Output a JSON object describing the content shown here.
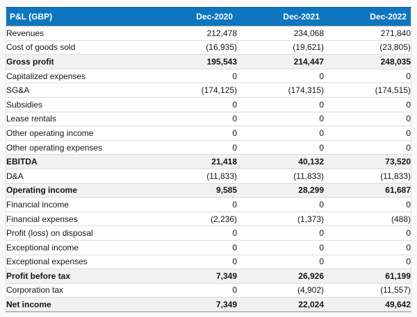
{
  "table": {
    "title": "P&L (GBP)",
    "columns": [
      "Dec-2020",
      "Dec-2021",
      "Dec-2022"
    ],
    "rows": [
      {
        "label": "Revenues",
        "type": "normal",
        "values": [
          "212,478",
          "234,068",
          "271,840"
        ]
      },
      {
        "label": "Cost of goods sold",
        "type": "normal",
        "values": [
          "(16,935)",
          "(19,621)",
          "(23,805)"
        ]
      },
      {
        "label": "Gross profit",
        "type": "subtotal",
        "values": [
          "195,543",
          "214,447",
          "248,035"
        ]
      },
      {
        "label": "Capitalized expenses",
        "type": "normal",
        "values": [
          "0",
          "0",
          "0"
        ]
      },
      {
        "label": "SG&A",
        "type": "normal",
        "values": [
          "(174,125)",
          "(174,315)",
          "(174,515)"
        ]
      },
      {
        "label": "Subsidies",
        "type": "normal",
        "values": [
          "0",
          "0",
          "0"
        ]
      },
      {
        "label": "Lease rentals",
        "type": "normal",
        "values": [
          "0",
          "0",
          "0"
        ]
      },
      {
        "label": "Other operating income",
        "type": "normal",
        "values": [
          "0",
          "0",
          "0"
        ]
      },
      {
        "label": "Other operating expenses",
        "type": "normal",
        "values": [
          "0",
          "0",
          "0"
        ]
      },
      {
        "label": "EBITDA",
        "type": "subtotal",
        "values": [
          "21,418",
          "40,132",
          "73,520"
        ]
      },
      {
        "label": "D&A",
        "type": "normal",
        "values": [
          "(11,833)",
          "(11,833)",
          "(11,833)"
        ]
      },
      {
        "label": "Operating income",
        "type": "subtotal",
        "values": [
          "9,585",
          "28,299",
          "61,687"
        ]
      },
      {
        "label": "Financial income",
        "type": "normal",
        "values": [
          "0",
          "0",
          "0"
        ]
      },
      {
        "label": "Financial expenses",
        "type": "normal",
        "values": [
          "(2,236)",
          "(1,373)",
          "(488)"
        ]
      },
      {
        "label": "Profit (loss) on disposal",
        "type": "normal",
        "values": [
          "0",
          "0",
          "0"
        ]
      },
      {
        "label": "Exceptional income",
        "type": "normal",
        "values": [
          "0",
          "0",
          "0"
        ]
      },
      {
        "label": "Exceptional expenses",
        "type": "normal",
        "values": [
          "0",
          "0",
          "0"
        ]
      },
      {
        "label": "Profit before tax",
        "type": "subtotal",
        "values": [
          "7,349",
          "26,926",
          "61,199"
        ]
      },
      {
        "label": "Corporation tax",
        "type": "normal",
        "values": [
          "0",
          "(4,902)",
          "(11,557)"
        ]
      },
      {
        "label": "Net income",
        "type": "subtotal",
        "values": [
          "7,349",
          "22,024",
          "49,642"
        ]
      }
    ]
  },
  "colors": {
    "header_bg": "#0d76bf",
    "header_text": "#ffffff",
    "subtotal_bg": "#f1f1f1",
    "row_border": "#dcdcdc",
    "subtotal_border": "#999999"
  },
  "chart_data": {
    "type": "table",
    "title": "P&L (GBP)",
    "columns": [
      "Dec-2020",
      "Dec-2021",
      "Dec-2022"
    ],
    "rows": [
      {
        "label": "Revenues",
        "values": [
          212478,
          234068,
          271840
        ]
      },
      {
        "label": "Cost of goods sold",
        "values": [
          -16935,
          -19621,
          -23805
        ]
      },
      {
        "label": "Gross profit",
        "values": [
          195543,
          214447,
          248035
        ]
      },
      {
        "label": "Capitalized expenses",
        "values": [
          0,
          0,
          0
        ]
      },
      {
        "label": "SG&A",
        "values": [
          -174125,
          -174315,
          -174515
        ]
      },
      {
        "label": "Subsidies",
        "values": [
          0,
          0,
          0
        ]
      },
      {
        "label": "Lease rentals",
        "values": [
          0,
          0,
          0
        ]
      },
      {
        "label": "Other operating income",
        "values": [
          0,
          0,
          0
        ]
      },
      {
        "label": "Other operating expenses",
        "values": [
          0,
          0,
          0
        ]
      },
      {
        "label": "EBITDA",
        "values": [
          21418,
          40132,
          73520
        ]
      },
      {
        "label": "D&A",
        "values": [
          -11833,
          -11833,
          -11833
        ]
      },
      {
        "label": "Operating income",
        "values": [
          9585,
          28299,
          61687
        ]
      },
      {
        "label": "Financial income",
        "values": [
          0,
          0,
          0
        ]
      },
      {
        "label": "Financial expenses",
        "values": [
          -2236,
          -1373,
          -488
        ]
      },
      {
        "label": "Profit (loss) on disposal",
        "values": [
          0,
          0,
          0
        ]
      },
      {
        "label": "Exceptional income",
        "values": [
          0,
          0,
          0
        ]
      },
      {
        "label": "Exceptional expenses",
        "values": [
          0,
          0,
          0
        ]
      },
      {
        "label": "Profit before tax",
        "values": [
          7349,
          26926,
          61199
        ]
      },
      {
        "label": "Corporation tax",
        "values": [
          0,
          -4902,
          -11557
        ]
      },
      {
        "label": "Net income",
        "values": [
          7349,
          22024,
          49642
        ]
      }
    ]
  }
}
